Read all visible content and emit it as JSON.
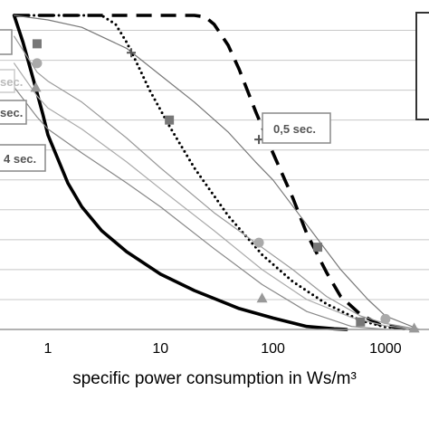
{
  "chart_data": {
    "type": "line",
    "xlabel": "specific power consumption in Ws/m³",
    "xscale": "log",
    "xlim": [
      0.5,
      2000
    ],
    "x_ticks": [
      {
        "value": 1,
        "label": "1"
      },
      {
        "value": 10,
        "label": "10"
      },
      {
        "value": 100,
        "label": "100"
      },
      {
        "value": 1000,
        "label": "1000"
      }
    ],
    "ylim": [
      0,
      10.5
    ],
    "grid": "horizontal",
    "series": [
      {
        "style": "solid-thick",
        "color": "#000000",
        "x": [
          0.5,
          0.6,
          0.7,
          0.8,
          0.9,
          1,
          1.5,
          2,
          3,
          5,
          10,
          20,
          50,
          100,
          200,
          350,
          450
        ],
        "y": [
          10.5,
          9.6,
          8.7,
          7.9,
          7.2,
          6.5,
          4.9,
          4.1,
          3.3,
          2.6,
          1.85,
          1.3,
          0.7,
          0.38,
          0.1,
          0.02,
          0.0
        ]
      },
      {
        "style": "dashed-thick",
        "color": "#000000",
        "x": [
          0.5,
          20,
          25,
          30,
          40,
          50,
          70,
          100,
          150,
          200,
          300,
          400,
          600,
          900,
          1500
        ],
        "y": [
          10.5,
          10.5,
          10.45,
          10.2,
          9.5,
          8.7,
          7.3,
          5.9,
          4.4,
          3.2,
          1.9,
          1.1,
          0.5,
          0.15,
          0.02
        ]
      },
      {
        "style": "dotted",
        "color": "#000000",
        "x": [
          0.5,
          3,
          4,
          5,
          6,
          8,
          12,
          20,
          40,
          80,
          150,
          300,
          600,
          1000,
          1800
        ],
        "y": [
          10.5,
          10.5,
          10.2,
          9.6,
          9.0,
          8.0,
          6.8,
          5.4,
          3.8,
          2.5,
          1.6,
          0.85,
          0.3,
          0.08,
          0.0
        ]
      },
      {
        "style": "thin",
        "color": "#777777",
        "label": "0,5 sec.",
        "x": [
          0.5,
          1,
          2,
          5,
          10,
          20,
          40,
          70,
          100,
          200,
          400,
          700,
          1000,
          2000
        ],
        "y": [
          10.5,
          10.35,
          10.1,
          9.4,
          8.5,
          7.6,
          6.6,
          5.6,
          5.0,
          3.5,
          2.0,
          1.0,
          0.45,
          0.0
        ]
      },
      {
        "style": "thin",
        "color": "#9a9a9a",
        "x": [
          0.5,
          0.8,
          1,
          2,
          5,
          10,
          30,
          70,
          150,
          300,
          600,
          1000,
          2000
        ],
        "y": [
          9.8,
          8.6,
          8.3,
          7.6,
          6.4,
          5.4,
          3.9,
          2.9,
          2.0,
          1.1,
          0.45,
          0.2,
          0.0
        ]
      },
      {
        "style": "thin",
        "color": "#aaaaaa",
        "x": [
          0.5,
          0.8,
          1,
          2,
          5,
          10,
          30,
          80,
          200,
          500,
          1000,
          2000
        ],
        "y": [
          8.9,
          7.8,
          7.4,
          6.7,
          5.6,
          4.7,
          3.3,
          2.0,
          1.0,
          0.4,
          0.12,
          0.0
        ]
      },
      {
        "style": "thin",
        "color": "#888888",
        "label": "4 sec.",
        "x": [
          0.5,
          0.8,
          1,
          2,
          5,
          10,
          30,
          80,
          200,
          500,
          1000
        ],
        "y": [
          8.1,
          7.1,
          6.7,
          5.9,
          4.9,
          4.1,
          2.7,
          1.5,
          0.6,
          0.1,
          0.0
        ]
      }
    ],
    "markers": [
      {
        "shape": "plus",
        "color": "#555555",
        "x": [
          5.5,
          75
        ],
        "y": [
          9.25,
          6.35
        ]
      },
      {
        "shape": "square",
        "color": "#777777",
        "x": [
          0.8,
          12,
          250,
          600
        ],
        "y": [
          9.55,
          7.0,
          2.75,
          0.25
        ]
      },
      {
        "shape": "circle",
        "color": "#aaaaaa",
        "x": [
          0.8,
          75,
          1000
        ],
        "y": [
          8.9,
          2.9,
          0.35
        ]
      },
      {
        "shape": "triangle",
        "color": "#999999",
        "x": [
          0.78,
          80,
          1800
        ],
        "y": [
          8.1,
          1.05,
          0.05
        ]
      }
    ],
    "annotations": [
      {
        "text": "sec.",
        "color": "#bbbbbb"
      },
      {
        "text": "sec.",
        "color": "#777777"
      },
      {
        "text": "4 sec.",
        "color": "#777777"
      },
      {
        "text": "0,5 sec.",
        "color": "#777777"
      }
    ]
  }
}
